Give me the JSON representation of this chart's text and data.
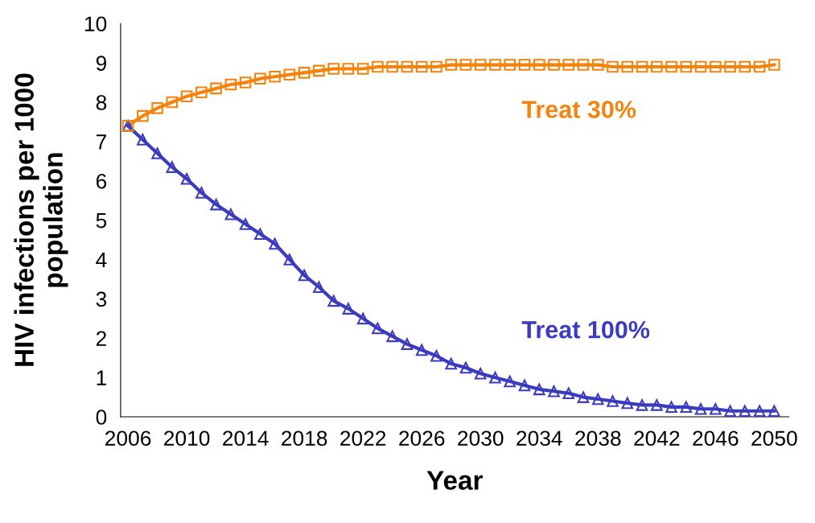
{
  "chart_data": {
    "type": "line",
    "xlabel": "Year",
    "ylabel": "HIV infections per 1000\npopulation",
    "x": [
      2006,
      2007,
      2008,
      2009,
      2010,
      2011,
      2012,
      2013,
      2014,
      2015,
      2016,
      2017,
      2018,
      2019,
      2020,
      2021,
      2022,
      2023,
      2024,
      2025,
      2026,
      2027,
      2028,
      2029,
      2030,
      2031,
      2032,
      2033,
      2034,
      2035,
      2036,
      2037,
      2038,
      2039,
      2040,
      2041,
      2042,
      2043,
      2044,
      2045,
      2046,
      2047,
      2048,
      2049,
      2050
    ],
    "series": [
      {
        "name": "Treat 30%",
        "color": "#f5820a",
        "marker": "square",
        "values": [
          7.4,
          7.65,
          7.85,
          8.0,
          8.15,
          8.25,
          8.35,
          8.45,
          8.5,
          8.6,
          8.65,
          8.7,
          8.75,
          8.8,
          8.85,
          8.85,
          8.85,
          8.9,
          8.9,
          8.9,
          8.9,
          8.9,
          8.95,
          8.95,
          8.95,
          8.95,
          8.95,
          8.95,
          8.95,
          8.95,
          8.95,
          8.95,
          8.95,
          8.9,
          8.9,
          8.9,
          8.9,
          8.9,
          8.9,
          8.9,
          8.9,
          8.9,
          8.9,
          8.9,
          8.95
        ]
      },
      {
        "name": "Treat 100%",
        "color": "#3b3bc0",
        "marker": "triangle",
        "values": [
          7.4,
          7.05,
          6.7,
          6.35,
          6.05,
          5.7,
          5.4,
          5.15,
          4.9,
          4.65,
          4.4,
          4.0,
          3.6,
          3.3,
          2.95,
          2.75,
          2.5,
          2.25,
          2.05,
          1.85,
          1.7,
          1.55,
          1.35,
          1.25,
          1.1,
          1.0,
          0.9,
          0.8,
          0.7,
          0.65,
          0.6,
          0.5,
          0.45,
          0.4,
          0.35,
          0.3,
          0.3,
          0.25,
          0.25,
          0.2,
          0.2,
          0.15,
          0.15,
          0.15,
          0.15
        ]
      }
    ],
    "xlim": [
      2005.5,
      2051
    ],
    "xticks": [
      2006,
      2010,
      2014,
      2018,
      2022,
      2026,
      2030,
      2034,
      2038,
      2042,
      2046,
      2050
    ],
    "ylim": [
      0,
      10
    ],
    "yticks": [
      0,
      1,
      2,
      3,
      4,
      5,
      6,
      7,
      8,
      9,
      10
    ],
    "grid": false,
    "legend": false
  }
}
